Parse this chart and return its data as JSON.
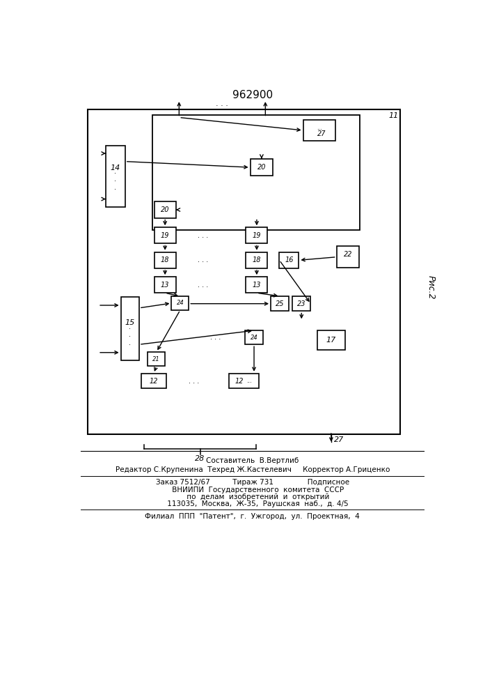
{
  "title": "962900",
  "background": "#ffffff",
  "line_color": "#000000",
  "footer_lines": [
    "Составитель  В.Вертлиб",
    "Редактор С.Крупенина  Техред Ж.Кастелевич     Корректор А.Гриценко",
    "Заказ 7512/67          Тираж 731               Подписное",
    "     ВНИИПИ  Государственного  комитета  СССР",
    "     по  делам  изобретений  и  открытий",
    "     113035,  Москва,  Ж-35,  Раушская  наб.,  д. 4/5",
    "Филиал  ППП  \"Патент\",  г.  Ужгород,  ул.  Проектная,  4"
  ]
}
